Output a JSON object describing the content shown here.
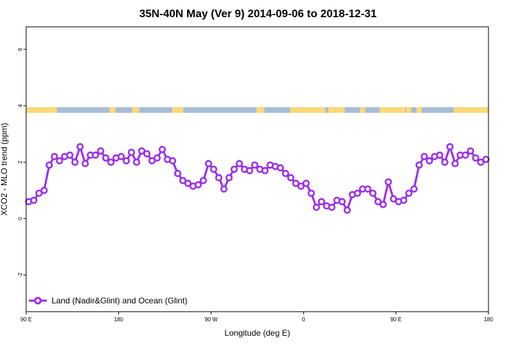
{
  "chart_data": {
    "type": "line",
    "title": "35N-40N May (Ver 9)   2014-09-06 to 2018-12-31",
    "xlabel": "Longitude (deg E)",
    "ylabel": "XCO2 - MLO trend (ppm)",
    "xlim": [
      90,
      540
    ],
    "ylim": [
      -3.3,
      6.8
    ],
    "x_ticks": [
      {
        "value": 90,
        "label": "90 E"
      },
      {
        "value": 180,
        "label": "180"
      },
      {
        "value": 270,
        "label": "90 W"
      },
      {
        "value": 360,
        "label": "0"
      },
      {
        "value": 450,
        "label": "90 E"
      },
      {
        "value": 540,
        "label": "180"
      }
    ],
    "y_ticks": [
      {
        "value": -2,
        "label": "-2"
      },
      {
        "value": 0,
        "label": "0"
      },
      {
        "value": 2,
        "label": "2"
      },
      {
        "value": 4,
        "label": "4"
      },
      {
        "value": 6,
        "label": "6"
      }
    ],
    "legend_position": "bottom-left",
    "series": [
      {
        "name": "Land (Nadir&Glint) and Ocean (Glint)",
        "color": "#9B2EE8",
        "x": [
          92.5,
          97.5,
          102.5,
          107.5,
          112.5,
          117.5,
          122.5,
          127.5,
          132.5,
          137.5,
          142.5,
          147.5,
          152.5,
          157.5,
          162.5,
          167.5,
          172.5,
          177.5,
          182.5,
          187.5,
          192.5,
          197.5,
          202.5,
          207.5,
          212.5,
          217.5,
          222.5,
          227.5,
          232.5,
          237.5,
          242.5,
          247.5,
          252.5,
          257.5,
          262.5,
          267.5,
          272.5,
          277.5,
          282.5,
          287.5,
          292.5,
          297.5,
          302.5,
          307.5,
          312.5,
          317.5,
          322.5,
          327.5,
          332.5,
          337.5,
          342.5,
          347.5,
          352.5,
          357.5,
          362.5,
          367.5,
          372.5,
          377.5,
          382.5,
          387.5,
          392.5,
          397.5,
          402.5,
          407.5,
          412.5,
          417.5,
          422.5,
          427.5,
          432.5,
          437.5,
          442.5,
          447.5,
          452.5,
          457.5,
          462.5,
          467.5,
          472.5,
          477.5,
          482.5,
          487.5,
          492.5,
          497.5,
          502.5,
          507.5,
          512.5,
          517.5,
          522.5,
          527.5,
          532.5,
          537.5
        ],
        "values": [
          0.6,
          0.65,
          0.9,
          1.0,
          1.9,
          2.2,
          2.05,
          2.2,
          2.25,
          2.0,
          2.55,
          1.95,
          2.25,
          2.25,
          2.4,
          2.15,
          2.0,
          2.15,
          2.2,
          2.05,
          2.35,
          2.0,
          2.4,
          2.3,
          2.05,
          2.15,
          2.45,
          2.1,
          2.05,
          1.6,
          1.35,
          1.25,
          1.15,
          1.2,
          1.35,
          1.95,
          1.75,
          1.45,
          1.05,
          1.45,
          1.75,
          1.95,
          1.75,
          1.7,
          1.9,
          1.75,
          1.7,
          1.9,
          1.85,
          1.8,
          1.6,
          1.45,
          1.25,
          1.15,
          1.25,
          0.9,
          0.4,
          0.6,
          0.45,
          0.4,
          0.65,
          0.6,
          0.3,
          0.85,
          0.9,
          1.05,
          1.05,
          0.9,
          0.6,
          0.5,
          1.3,
          0.7,
          0.6,
          0.65,
          0.9,
          1.05,
          1.9,
          2.2,
          2.05,
          2.2,
          2.25,
          2.0,
          2.55,
          1.95,
          2.25,
          2.25,
          2.4,
          2.15,
          2.0,
          2.1
        ]
      }
    ],
    "surface_strip": {
      "y_range": [
        3.75,
        3.95
      ],
      "land_color": "#FFD976",
      "ocean_color": "#A8BCD8",
      "land_segments": [
        [
          90,
          120
        ],
        [
          171,
          177
        ],
        [
          193,
          200
        ],
        [
          232,
          243
        ],
        [
          314,
          322
        ],
        [
          347,
          381
        ],
        [
          384,
          400
        ],
        [
          415,
          420
        ],
        [
          434,
          459
        ],
        [
          460,
          465
        ],
        [
          470,
          475
        ],
        [
          506,
          540
        ]
      ]
    }
  }
}
